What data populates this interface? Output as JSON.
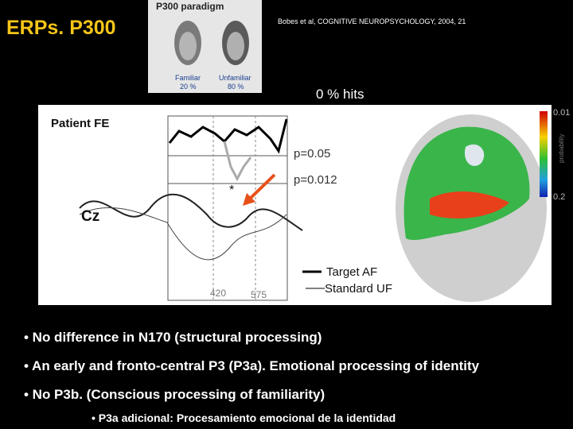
{
  "header": {
    "title": "ERPs. P300",
    "citation": "Bobes et al, COGNITIVE NEUROPSYCHOLOGY, 2004, 21",
    "hits": "0 % hits"
  },
  "paradigm": {
    "title": "P300 paradigm",
    "faces": [
      {
        "label": "Familiar",
        "percent": "20 %"
      },
      {
        "label": "Unfamiliar",
        "percent": "80 %"
      }
    ]
  },
  "figure": {
    "patient": "Patient FE",
    "p_values": [
      "p=0.05",
      "p=0.012"
    ],
    "star": "*",
    "electrode": "Cz",
    "latencies": [
      "420",
      "575"
    ],
    "legend": [
      "Target AF",
      "Standard UF"
    ],
    "colorbar": {
      "top": "0.01",
      "bottom": "0.2",
      "label": "probability"
    }
  },
  "bullets": [
    "• No difference in N170 (structural processing)",
    "• An early and fronto-central P3 (P3a). Emotional processing of identity",
    "• No P3b. (Conscious processing of familiarity)"
  ],
  "sub_bullet": "• P3a adicional: Procesamiento emocional de la identidad"
}
